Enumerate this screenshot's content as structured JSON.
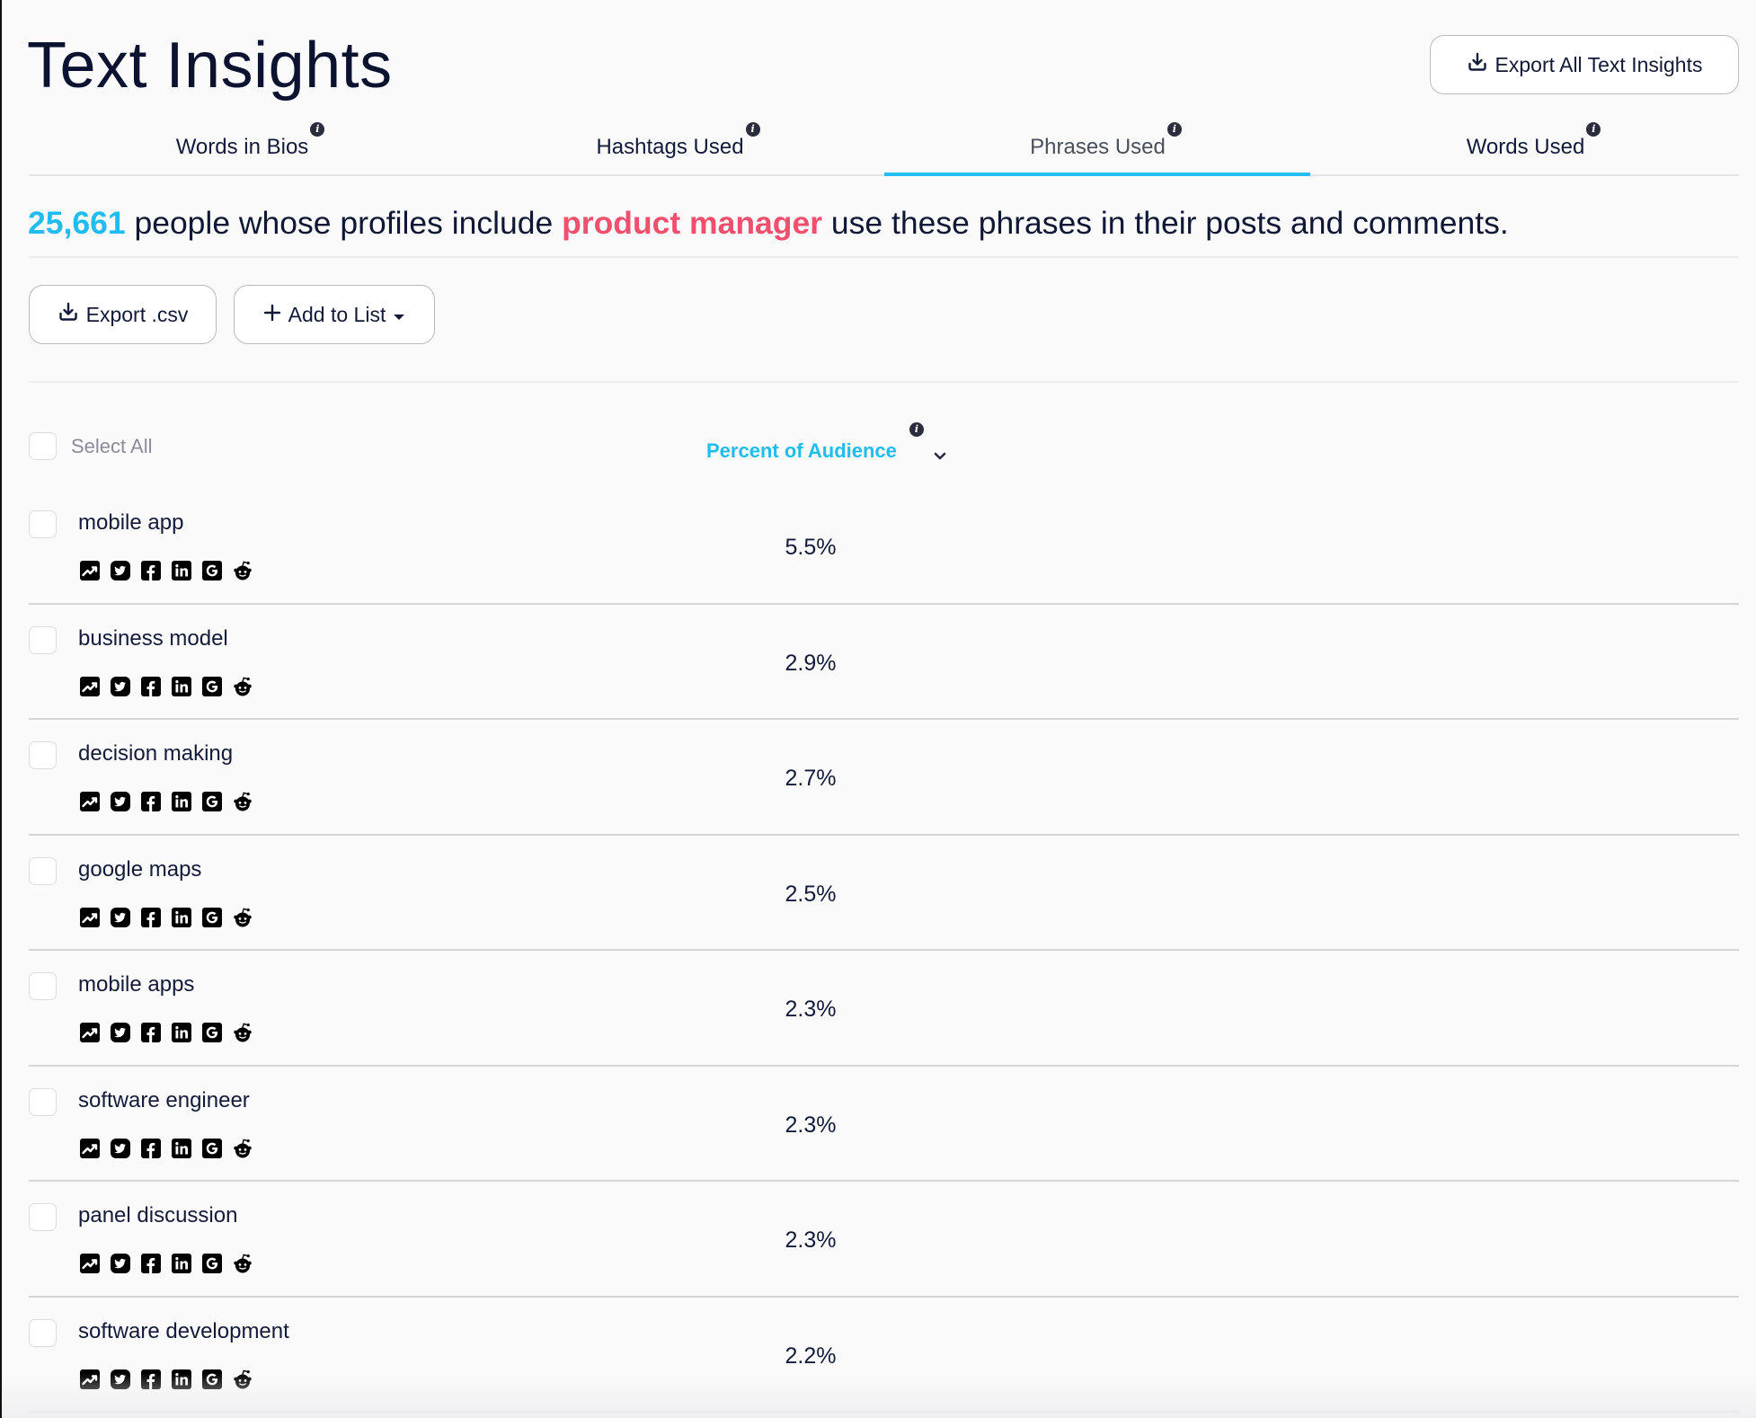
{
  "page": {
    "title": "Text Insights",
    "export_all_label": "Export All Text Insights"
  },
  "tabs": [
    {
      "label": "Words in Bios",
      "active": false
    },
    {
      "label": "Hashtags Used",
      "active": false
    },
    {
      "label": "Phrases Used",
      "active": true
    },
    {
      "label": "Words Used",
      "active": false
    }
  ],
  "summary": {
    "count": "25,661",
    "text_before": " people whose profiles include ",
    "keyword": "product manager",
    "text_after": " use these phrases in their posts and comments."
  },
  "toolbar": {
    "export_csv_label": "Export .csv",
    "add_to_list_label": "Add to List"
  },
  "table": {
    "select_all_label": "Select All",
    "column_header": "Percent of Audience",
    "sort_direction": "descending",
    "row_icons": [
      "trend-icon",
      "twitter-icon",
      "facebook-icon",
      "linkedin-icon",
      "google-icon",
      "reddit-icon"
    ],
    "rows": [
      {
        "phrase": "mobile app",
        "percent": "5.5%"
      },
      {
        "phrase": "business model",
        "percent": "2.9%"
      },
      {
        "phrase": "decision making",
        "percent": "2.7%"
      },
      {
        "phrase": "google maps",
        "percent": "2.5%"
      },
      {
        "phrase": "mobile apps",
        "percent": "2.3%"
      },
      {
        "phrase": "software engineer",
        "percent": "2.3%"
      },
      {
        "phrase": "panel discussion",
        "percent": "2.3%"
      },
      {
        "phrase": "software development",
        "percent": "2.2%"
      }
    ]
  },
  "colors": {
    "accent": "#1fc0f0",
    "keyword": "#f0506e",
    "text": "#0f1632"
  }
}
